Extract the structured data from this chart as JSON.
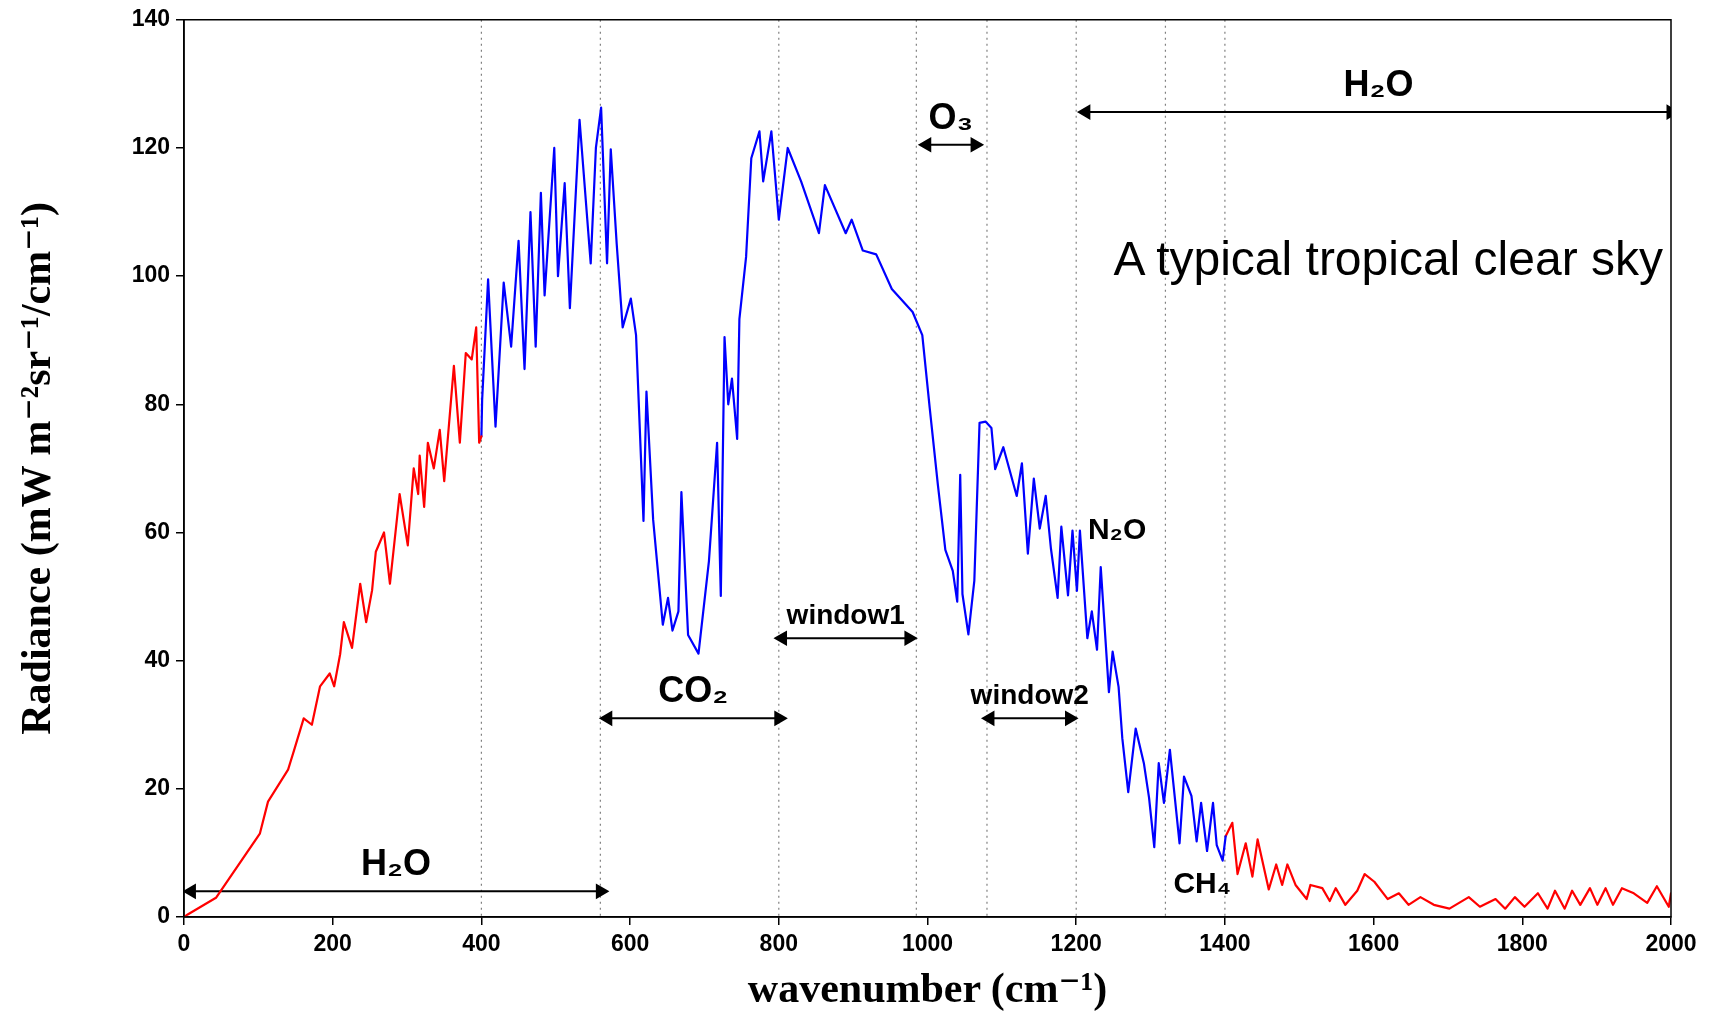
{
  "chart_data": {
    "type": "line",
    "xlabel": "wavenumber (cm⁻¹)",
    "ylabel": "Radiance (mW m⁻²sr⁻¹/cm⁻¹)",
    "xlim": [
      0,
      2000
    ],
    "xticks": [
      0,
      200,
      400,
      600,
      800,
      1000,
      1200,
      1400,
      1600,
      1800,
      2000
    ],
    "ylim": [
      0,
      140
    ],
    "yticks": [
      0,
      20,
      40,
      60,
      80,
      100,
      120,
      140
    ],
    "grid": false,
    "legend": false,
    "marker": "none",
    "line_style": "solid",
    "series": [
      {
        "color": "#ff0000",
        "x": [
          0,
          5,
          43,
          102,
          113,
          140,
          148,
          161,
          172,
          183,
          196,
          202,
          210,
          215,
          226,
          237,
          245,
          253,
          258,
          269,
          277,
          290,
          301,
          309,
          315,
          317,
          323,
          328,
          336,
          344,
          350,
          363,
          371,
          379,
          387,
          393,
          397,
          400
        ],
        "values": [
          0,
          0.4,
          3,
          13,
          18,
          23,
          26,
          31,
          30,
          36,
          38,
          36,
          41,
          46,
          42,
          52,
          46,
          51,
          57,
          60,
          52,
          66,
          58,
          70,
          66,
          72,
          64,
          74,
          70,
          76,
          68,
          86,
          74,
          88,
          87,
          92,
          74,
          75
        ]
      },
      {
        "color": "#0000ff",
        "x": [
          400,
          401,
          409,
          419,
          430,
          440,
          450,
          458,
          466,
          473,
          480,
          485,
          498,
          503,
          512,
          519,
          532,
          547,
          554,
          561,
          569,
          574,
          582,
          590,
          601,
          608,
          618,
          622,
          631,
          644,
          651,
          657,
          665,
          669,
          678,
          692,
          706,
          717,
          722,
          727,
          732,
          737,
          744,
          747,
          756,
          763,
          774,
          779,
          790,
          800,
          812,
          830,
          854,
          862,
          890,
          898,
          913,
          931,
          952,
          980,
          993,
          1003,
          1014,
          1024,
          1034,
          1040,
          1044,
          1047,
          1055,
          1063,
          1070,
          1078,
          1086,
          1091,
          1102,
          1120,
          1127,
          1135,
          1143,
          1151,
          1159,
          1166,
          1175,
          1180,
          1189,
          1195,
          1201,
          1205,
          1215,
          1221,
          1228,
          1233,
          1244,
          1249,
          1257,
          1262,
          1270,
          1280,
          1291,
          1298,
          1305,
          1311,
          1318,
          1326,
          1339,
          1345,
          1355,
          1362,
          1368,
          1376,
          1384,
          1389,
          1397,
          1401
        ],
        "values": [
          75,
          80.7,
          99.5,
          76.5,
          99,
          89,
          105.5,
          85.5,
          110,
          89,
          113,
          97,
          120,
          100,
          114.5,
          95,
          124.4,
          102,
          120,
          126.3,
          102,
          119.8,
          105,
          92,
          96.5,
          90.8,
          61.8,
          82,
          62,
          45.6,
          49.8,
          44.7,
          47.7,
          66.3,
          44,
          41.1,
          55.5,
          74,
          50.1,
          90.5,
          80,
          84,
          74.6,
          93.3,
          103,
          118.4,
          122.6,
          114.8,
          122.6,
          108.8,
          120,
          114.8,
          106.7,
          114.2,
          106.7,
          108.8,
          104,
          103.4,
          98,
          94.4,
          90.8,
          79.4,
          67.4,
          57.3,
          54,
          49.2,
          69,
          50.4,
          44.1,
          52.5,
          77.1,
          77.3,
          76.3,
          69.9,
          73.3,
          65.7,
          70.8,
          56.7,
          68.4,
          60.6,
          65.7,
          57.5,
          49.8,
          60.9,
          50.2,
          60.3,
          50.9,
          60.3,
          43.5,
          47.7,
          41.7,
          54.6,
          35.1,
          41.4,
          35.9,
          27.9,
          19.5,
          29.4,
          24,
          18.6,
          10.9,
          24,
          17.8,
          26.1,
          11.5,
          21.9,
          18.9,
          11.8,
          17.8,
          10.3,
          17.8,
          11.2,
          8.8,
          12.6
        ]
      },
      {
        "color": "#ff0000",
        "x": [
          1401,
          1410,
          1417,
          1428,
          1437,
          1444,
          1459,
          1469,
          1477,
          1484,
          1495,
          1510,
          1515,
          1531,
          1541,
          1549,
          1562,
          1578,
          1588,
          1601,
          1619,
          1634,
          1647,
          1663,
          1681,
          1702,
          1728,
          1743,
          1764,
          1777,
          1790,
          1803,
          1821,
          1834,
          1844,
          1857,
          1867,
          1878,
          1891,
          1901,
          1912,
          1922,
          1934,
          1950,
          1968,
          1981,
          1997,
          2000
        ],
        "values": [
          12.6,
          14.7,
          6.7,
          11.5,
          6.3,
          12.1,
          4.3,
          8.2,
          5,
          8.2,
          5,
          2.8,
          5,
          4.5,
          2.5,
          4.5,
          1.9,
          4.1,
          6.7,
          5.5,
          2.8,
          3.7,
          1.9,
          3.1,
          1.9,
          1.3,
          3.1,
          1.6,
          2.8,
          1.3,
          3.1,
          1.6,
          3.7,
          1.3,
          4.1,
          1.3,
          4.1,
          1.9,
          4.5,
          1.9,
          4.5,
          1.9,
          4.5,
          3.7,
          2.2,
          4.8,
          1.6,
          3.7
        ]
      },
      {
        "name": "H₂O",
        "color": "#000000",
        "marker": "triangle",
        "x": [
          10,
          560
        ],
        "values": [
          4,
          4
        ]
      },
      {
        "name": "CO₂",
        "color": "#000000",
        "marker": "triangle",
        "x": [
          570,
          800
        ],
        "values": [
          31,
          31
        ]
      },
      {
        "name": "window1",
        "color": "#000000",
        "marker": "triangle",
        "x": [
          805,
          975
        ],
        "values": [
          43.5,
          43.5
        ]
      },
      {
        "name": "window2",
        "color": "#000000",
        "marker": "triangle",
        "x": [
          1084,
          1191
        ],
        "values": [
          31,
          31
        ]
      },
      {
        "name": "O₃",
        "color": "#000000",
        "marker": "triangle",
        "x": [
          999,
          1064
        ],
        "values": [
          120.5,
          120.5
        ]
      },
      {
        "name": "H₂O",
        "color": "#000000",
        "marker": "triangle",
        "x": [
          1213,
          2000
        ],
        "values": [
          125.6,
          125.6
        ]
      }
    ],
    "ref_lines": [
      {
        "axis": "x",
        "value": 400,
        "color": "#808080",
        "line_style": "dotted"
      },
      {
        "axis": "x",
        "value": 560,
        "color": "#808080",
        "line_style": "dotted"
      },
      {
        "axis": "x",
        "value": 800,
        "color": "#808080",
        "line_style": "dotted"
      },
      {
        "axis": "x",
        "value": 985,
        "color": "#808080",
        "line_style": "dotted"
      },
      {
        "axis": "x",
        "value": 1080,
        "color": "#808080",
        "line_style": "dotted"
      },
      {
        "axis": "x",
        "value": 1200,
        "color": "#808080",
        "line_style": "dotted"
      },
      {
        "axis": "x",
        "value": 1320,
        "color": "#808080",
        "line_style": "dotted"
      },
      {
        "axis": "x",
        "value": 1400,
        "color": "#808080",
        "line_style": "dotted"
      }
    ],
    "annotations": [
      {
        "text": "N₂O",
        "x": 1205,
        "y": 60.3
      },
      {
        "text": "CH₄",
        "x": 1320,
        "y": 5
      },
      "A typical tropical clear sky"
    ]
  }
}
